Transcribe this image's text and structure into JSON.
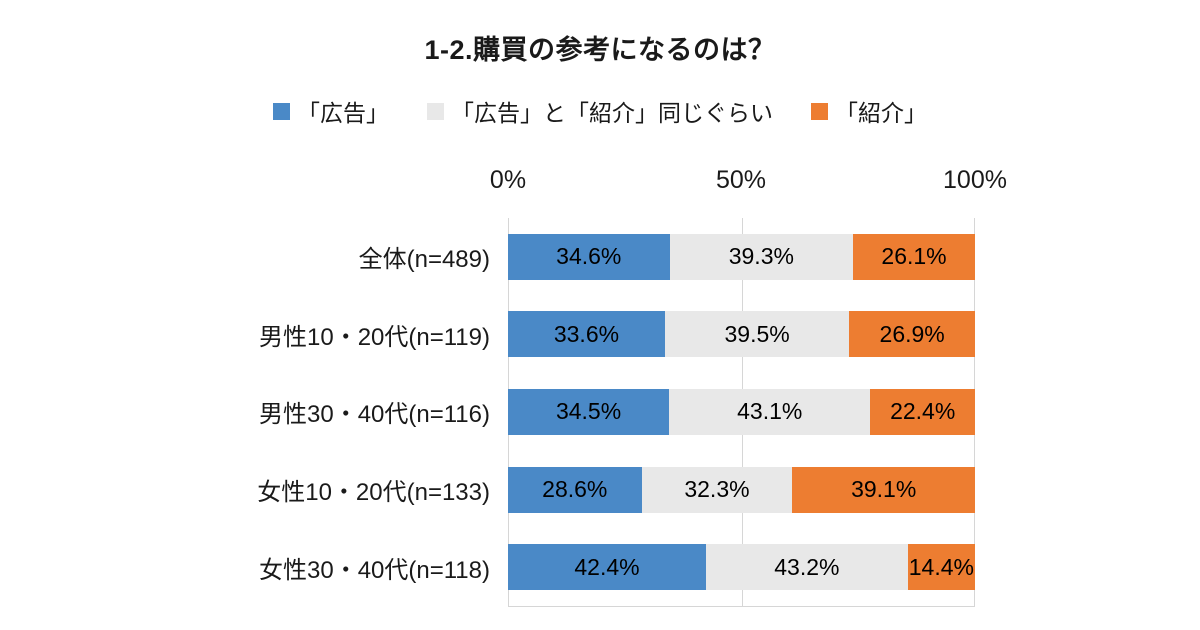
{
  "chart_data": {
    "type": "bar",
    "orientation": "horizontal",
    "stacked": true,
    "title": "1-2.購買の参考になるのは？",
    "categories": [
      "全体(n=489)",
      "男性10・20代(n=119)",
      "男性30・40代(n=116)",
      "女性10・20代(n=133)",
      "女性30・40代(n=118)"
    ],
    "series": [
      {
        "name": "「広告」",
        "color": "#4a89c7",
        "values": [
          34.6,
          33.6,
          34.5,
          28.6,
          42.4
        ]
      },
      {
        "name": "「広告」と「紹介」同じぐらい",
        "color": "#e8e8e8",
        "values": [
          39.3,
          39.5,
          43.1,
          32.3,
          43.2
        ]
      },
      {
        "name": "「紹介」",
        "color": "#ed7d31",
        "values": [
          26.1,
          26.9,
          22.4,
          39.1,
          14.4
        ]
      }
    ],
    "x_ticks": [
      "0%",
      "50%",
      "100%"
    ],
    "xlim": [
      0,
      100
    ],
    "value_label_suffix": "%",
    "legend_position": "top",
    "grid": true,
    "colors": {
      "grid": "#d6d6d6",
      "text": "#1a1a1a",
      "background": "#ffffff"
    }
  }
}
